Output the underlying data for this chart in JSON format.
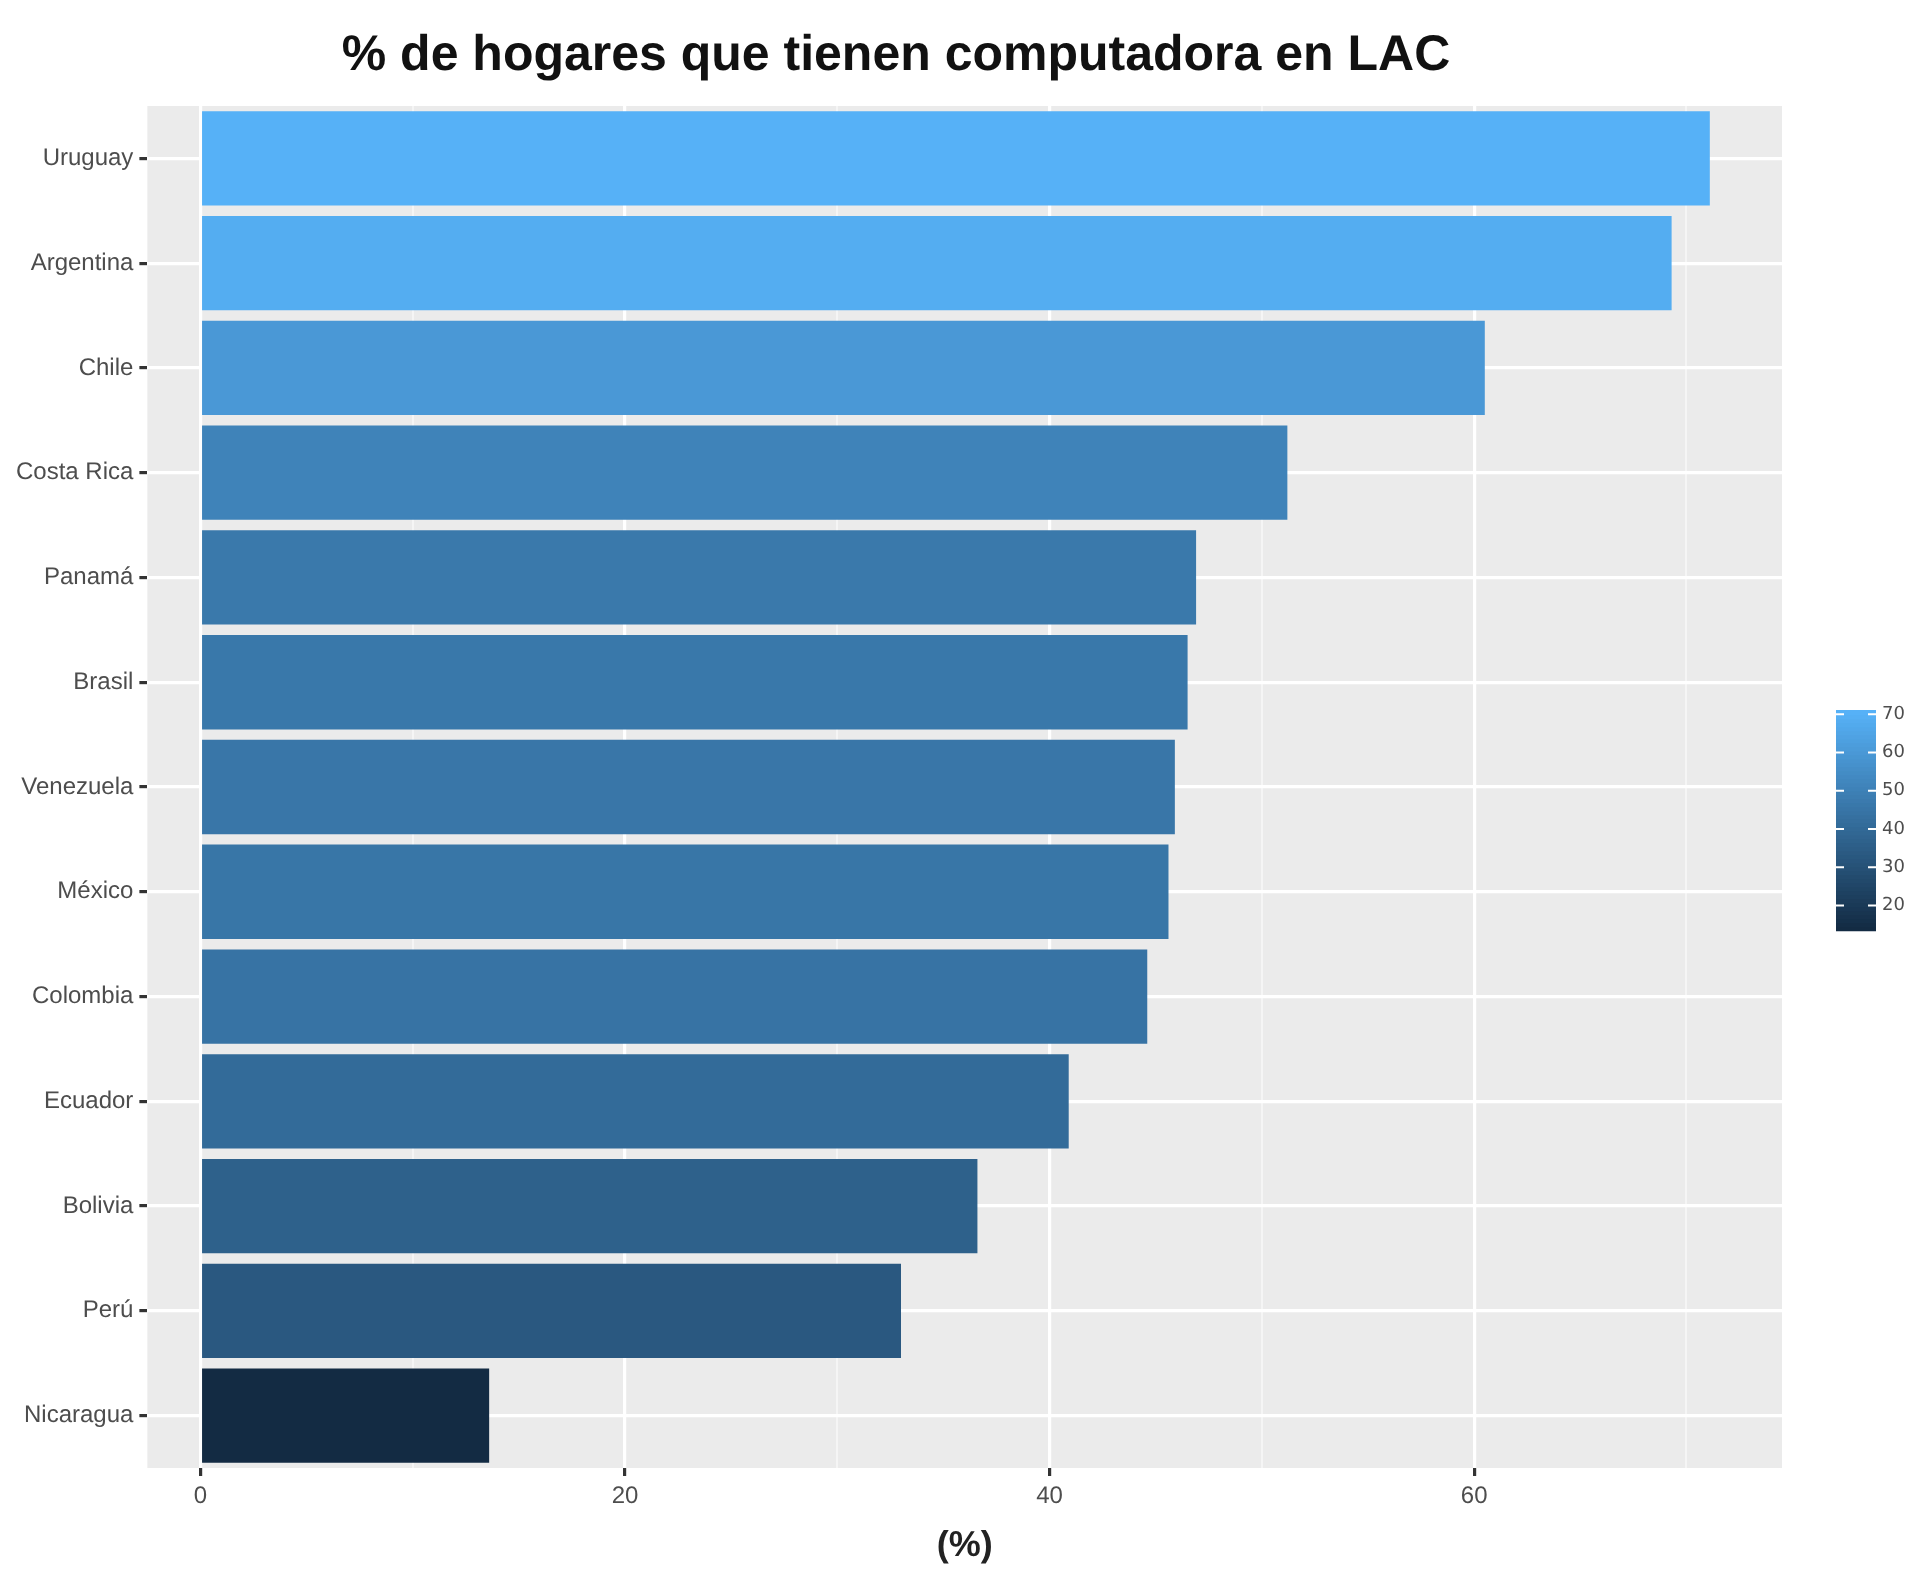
{
  "chart_data": {
    "type": "bar",
    "orientation": "horizontal",
    "title": "% de hogares que tienen computadora en LAC",
    "xlabel": "(%)",
    "categories": [
      "Uruguay",
      "Argentina",
      "Chile",
      "Costa Rica",
      "Panamá",
      "Brasil",
      "Venezuela",
      "México",
      "Colombia",
      "Ecuador",
      "Bolivia",
      "Perú",
      "Nicaragua"
    ],
    "values": [
      71.1,
      69.3,
      60.5,
      51.2,
      46.9,
      46.5,
      45.9,
      45.6,
      44.6,
      40.9,
      36.6,
      33.0,
      13.6
    ],
    "colors": [
      "#56b1f7",
      "#54adf1",
      "#4a98d6",
      "#3f83b9",
      "#3a79ab",
      "#3978aa",
      "#3976a8",
      "#3876a7",
      "#3773a4",
      "#336b99",
      "#2e618b",
      "#2a5880",
      "#132b43"
    ],
    "xlim": [
      -2.5,
      74.5
    ],
    "xticks": [
      0,
      {
        "value": 10,
        "label": null
      },
      20,
      {
        "value": 30,
        "label": null
      },
      40,
      {
        "value": 50,
        "label": null
      },
      60,
      {
        "value": 70,
        "label": null
      }
    ],
    "clim": [
      13.6,
      71.1
    ],
    "cticks": [
      20,
      30,
      40,
      50,
      60,
      70
    ],
    "grid": true,
    "legend": false
  }
}
